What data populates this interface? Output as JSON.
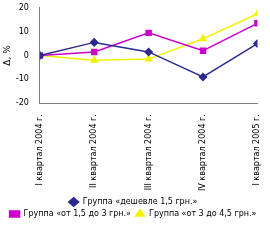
{
  "chart_data": {
    "type": "line",
    "y_label": "Δ, %",
    "categories": [
      "I квартал 2004 г.",
      "II квартал 2004 г.",
      "III квартал 2004 г.",
      "IV квартал 2004 г.",
      "I квартал 2005 г."
    ],
    "series": [
      {
        "name": "Группа «дешевле 1,5 грн.»",
        "color": "#2b2b8f",
        "marker": "diamond",
        "values": [
          0,
          5.5,
          1.5,
          -9,
          5
        ]
      },
      {
        "name": "Группа «от 1,5 до 3 грн.»",
        "color": "#cc00cc",
        "marker": "square",
        "values": [
          0,
          1.5,
          9.5,
          2,
          13.5
        ]
      },
      {
        "name": "Группа «от 3 до 4,5 грн.»",
        "color": "#f2f200",
        "marker": "triangle",
        "values": [
          0,
          -2,
          -1.5,
          7,
          17.5
        ]
      }
    ],
    "ylim": [
      -20,
      20
    ],
    "yticks": [
      -20,
      -10,
      0,
      10,
      20
    ],
    "grid": false,
    "legend": "bottom"
  }
}
